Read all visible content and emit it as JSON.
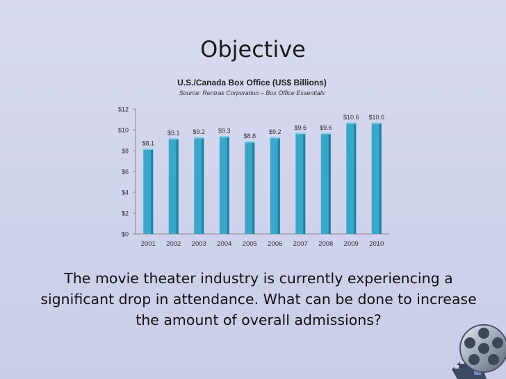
{
  "slide": {
    "title": "Objective",
    "body": "The movie theater industry is currently experiencing a significant drop in attendance. What can be done to increase the amount of overall admissions?"
  },
  "chart_data": {
    "type": "bar",
    "title": "U.S./Canada Box Office (US$ Billions)",
    "subtitle": "Source: Rentrak Corporation – Box Office Essentials",
    "categories": [
      "2001",
      "2002",
      "2003",
      "2004",
      "2005",
      "2006",
      "2007",
      "2008",
      "2009",
      "2010"
    ],
    "values": [
      8.1,
      9.1,
      9.2,
      9.3,
      8.8,
      9.2,
      9.6,
      9.6,
      10.6,
      10.6
    ],
    "data_labels": [
      "$8.1",
      "$9.1",
      "$9.2",
      "$9.3",
      "$8.8",
      "$9.2",
      "$9.6",
      "$9.6",
      "$10.6",
      "$10.6"
    ],
    "yticks": [
      "$0",
      "$2",
      "$4",
      "$6",
      "$8",
      "$10",
      "$12"
    ],
    "ylim": [
      0,
      12
    ],
    "xlabel": "",
    "ylabel": "",
    "grid": false,
    "bar_color": "#3aa6c9",
    "bar_color_dark": "#1f7fa3"
  },
  "icons": {
    "reel": "film-reel-icon"
  }
}
